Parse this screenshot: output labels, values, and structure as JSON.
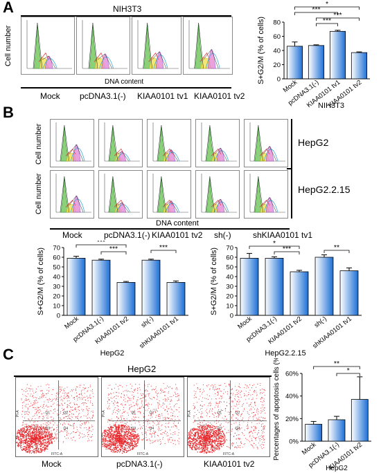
{
  "panelA": {
    "letter": "A",
    "cell_line": "NIH3T3",
    "y_axis_label": "Cell number",
    "x_axis_label": "DNA content",
    "sample_labels": [
      "Mock",
      "pcDNA3.1(-)",
      "KIAA0101 tv1",
      "KIAA0101 tv2"
    ]
  },
  "panelB": {
    "letter": "B",
    "row_labels": [
      "HepG2",
      "HepG2.2.15"
    ],
    "y_axis_label": "Cell number",
    "x_axis_label": "DNA content",
    "sample_labels": [
      "Mock",
      "pcDNA3.1(-)",
      "KIAA0101 tv2",
      "sh(-)",
      "shKIAA0101 tv1"
    ]
  },
  "panelC": {
    "letter": "C",
    "cell_line": "HepG2",
    "sample_labels": [
      "Mock",
      "pcDNA3.1(-)",
      "KIAA0101 tv2"
    ],
    "axis_x": "FITC-A",
    "axis_y": "PI-A",
    "quadrants": [
      "Q1",
      "Q2",
      "Q3",
      "Q4"
    ]
  },
  "chart_data": [
    {
      "type": "bar",
      "categories": [
        "Mock",
        "pcDNA3.1(-)",
        "KIAA0101 tv1",
        "KIAA0101 tv2"
      ],
      "values": [
        46,
        47,
        67,
        37
      ],
      "errors": [
        6,
        1,
        1.5,
        1
      ],
      "ylabel": "S+G2/M (% of cells)",
      "xlabel": "NIH3T3",
      "ylim": [
        0,
        80
      ],
      "yticks": [
        0,
        20,
        40,
        60,
        80
      ],
      "significance": [
        {
          "from": 0,
          "to": 3,
          "label": "*"
        },
        {
          "from": 0,
          "to": 2,
          "label": "***"
        },
        {
          "from": 1,
          "to": 3,
          "label": "***"
        },
        {
          "from": 1,
          "to": 2,
          "label": "***"
        }
      ]
    },
    {
      "type": "bar",
      "categories": [
        "Mock",
        "pcDNA3.1(-)",
        "KIAA0101 tv2",
        "sh(-)",
        "shKIAA0101 tv1"
      ],
      "values": [
        59,
        57,
        34,
        57,
        34
      ],
      "errors": [
        2,
        1,
        1,
        1,
        1.5
      ],
      "ylabel": "S+G2/M (% of cells)",
      "xlabel": "HepG2",
      "ylim": [
        0,
        70
      ],
      "yticks": [
        0,
        10,
        20,
        30,
        40,
        50,
        60,
        70
      ],
      "significance": [
        {
          "from": 0,
          "to": 2,
          "label": "***"
        },
        {
          "from": 1,
          "to": 2,
          "label": "***"
        },
        {
          "from": 3,
          "to": 4,
          "label": "***"
        }
      ]
    },
    {
      "type": "bar",
      "categories": [
        "Mock",
        "pcDNA3.1(-)",
        "KIAA0101 tv2",
        "sh(-)",
        "shKIAA0101 tv1"
      ],
      "values": [
        59,
        59,
        45,
        60,
        46
      ],
      "errors": [
        5,
        1.5,
        1.5,
        2.5,
        3
      ],
      "ylabel": "S+G2/M (% of cells)",
      "xlabel": "HepG2.2.15",
      "ylim": [
        0,
        70
      ],
      "yticks": [
        0,
        10,
        20,
        30,
        40,
        50,
        60,
        70
      ],
      "significance": [
        {
          "from": 0,
          "to": 2,
          "label": "*"
        },
        {
          "from": 1,
          "to": 2,
          "label": "***"
        },
        {
          "from": 3,
          "to": 4,
          "label": "**"
        }
      ]
    },
    {
      "type": "bar",
      "categories": [
        "Mock",
        "pcDNA3.1(-)",
        "KIAA0101 tv2"
      ],
      "values": [
        15,
        19,
        37
      ],
      "errors": [
        2.5,
        3,
        20
      ],
      "ylabel": "Percentages of apoptosis cells (%)",
      "xlabel": "HepG2",
      "ylim": [
        0,
        60
      ],
      "yticks": [
        0,
        20,
        40,
        60
      ],
      "tick_suffix": "%",
      "significance": [
        {
          "from": 0,
          "to": 2,
          "label": "**"
        },
        {
          "from": 1,
          "to": 2,
          "label": "*"
        }
      ]
    }
  ]
}
